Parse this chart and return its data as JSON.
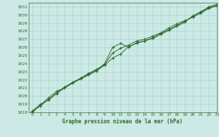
{
  "title": "Graphe pression niveau de la mer (hPa)",
  "bg_color": "#cce9e5",
  "grid_color": "#aad4cf",
  "line_color": "#2d6a2d",
  "xlim": [
    -0.5,
    23
  ],
  "ylim": [
    1018,
    1031.5
  ],
  "xticks": [
    0,
    1,
    2,
    3,
    4,
    5,
    6,
    7,
    8,
    9,
    10,
    11,
    12,
    13,
    14,
    15,
    16,
    17,
    18,
    19,
    20,
    21,
    22,
    23
  ],
  "yticks": [
    1018,
    1019,
    1020,
    1021,
    1022,
    1023,
    1024,
    1025,
    1026,
    1027,
    1028,
    1029,
    1030,
    1031
  ],
  "series1": [
    1018.2,
    1019.0,
    1019.5,
    1020.3,
    1021.0,
    1021.6,
    1022.2,
    1022.7,
    1023.2,
    1024.0,
    1026.0,
    1026.5,
    1026.0,
    1026.6,
    1026.8,
    1027.1,
    1027.6,
    1028.1,
    1028.6,
    1029.1,
    1029.9,
    1030.4,
    1031.0,
    1031.3
  ],
  "series2": [
    1018.0,
    1018.9,
    1019.8,
    1020.6,
    1021.0,
    1021.6,
    1022.1,
    1022.6,
    1023.1,
    1023.8,
    1024.7,
    1025.2,
    1026.1,
    1026.5,
    1026.8,
    1027.2,
    1027.7,
    1028.2,
    1028.7,
    1029.2,
    1029.8,
    1030.2,
    1030.8,
    1031.1
  ],
  "series3": [
    1018.1,
    1018.8,
    1019.6,
    1020.4,
    1021.1,
    1021.7,
    1022.2,
    1022.8,
    1023.3,
    1023.9,
    1025.3,
    1025.9,
    1026.3,
    1026.8,
    1027.0,
    1027.4,
    1027.8,
    1028.4,
    1028.9,
    1029.3,
    1029.7,
    1030.3,
    1030.9,
    1031.2
  ]
}
